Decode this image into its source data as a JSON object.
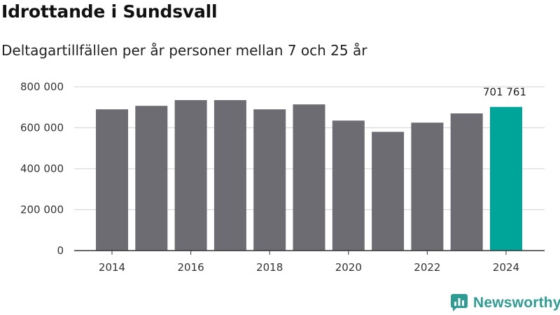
{
  "header": {
    "title": "Idrottande i Sundsvall",
    "subtitle": "Deltagartillfällen per år personer mellan 7 och 25 år"
  },
  "brand": {
    "name": "Newsworthy",
    "icon": "newsworthy-logo-icon",
    "color": "#2f9c93"
  },
  "colors": {
    "bar": "#6d6c72",
    "highlight": "#00a59a",
    "grid": "#d9d9d9",
    "axis": "#333333"
  },
  "chart_data": {
    "type": "bar",
    "title": "Idrottande i Sundsvall",
    "subtitle": "Deltagartillfällen per år personer mellan 7 och 25 år",
    "xlabel": "",
    "ylabel": "",
    "categories": [
      "2014",
      "2015",
      "2016",
      "2017",
      "2018",
      "2019",
      "2020",
      "2021",
      "2022",
      "2023",
      "2024"
    ],
    "values": [
      690000,
      707000,
      735000,
      735000,
      690000,
      714000,
      635000,
      580000,
      625000,
      670000,
      701761
    ],
    "highlight_index": 10,
    "highlight_label": "701 761",
    "ylim": [
      0,
      800000
    ],
    "yticks": [
      0,
      200000,
      400000,
      600000,
      800000
    ],
    "ytick_labels": [
      "0",
      "200 000",
      "400 000",
      "600 000",
      "800 000"
    ],
    "xtick_labels": [
      "2014",
      "2016",
      "2018",
      "2020",
      "2022",
      "2024"
    ],
    "grid": true,
    "legend": "none"
  }
}
